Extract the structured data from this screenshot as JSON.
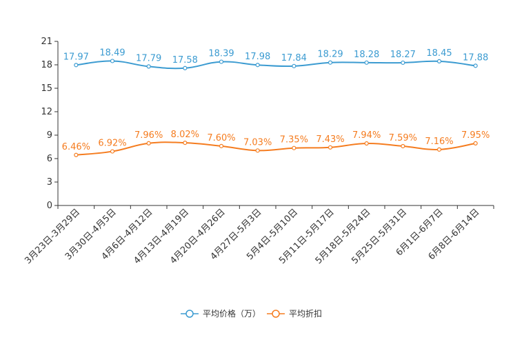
{
  "chart_data": {
    "type": "line",
    "title": "",
    "xlabel": "",
    "ylabel": "",
    "ylim": [
      0,
      21
    ],
    "yticks": [
      0,
      3,
      6,
      9,
      12,
      15,
      18,
      21
    ],
    "grid": false,
    "legend_position": "bottom-center",
    "categories": [
      "3月23日-3月29日",
      "3月30日-4月5日",
      "4月6日-4月12日",
      "4月13日-4月19日",
      "4月20日-4月26日",
      "4月27日-5月3日",
      "5月4日-5月10日",
      "5月11日-5月17日",
      "5月18日-5月24日",
      "5月25日-5月31日",
      "6月1日-6月7日",
      "6月8日-6月14日"
    ],
    "series": [
      {
        "name": "平均价格（万）",
        "color": "#3b9bd1",
        "values": [
          17.97,
          18.49,
          17.79,
          17.58,
          18.39,
          17.98,
          17.84,
          18.29,
          18.28,
          18.27,
          18.45,
          17.88
        ],
        "labels": [
          "17.97",
          "18.49",
          "17.79",
          "17.58",
          "18.39",
          "17.98",
          "17.84",
          "18.29",
          "18.28",
          "18.27",
          "18.45",
          "17.88"
        ]
      },
      {
        "name": "平均折扣",
        "color": "#f57c1f",
        "values": [
          6.46,
          6.92,
          7.96,
          8.02,
          7.6,
          7.03,
          7.35,
          7.43,
          7.94,
          7.59,
          7.16,
          7.95
        ],
        "labels": [
          "6.46%",
          "6.92%",
          "7.96%",
          "8.02%",
          "7.60%",
          "7.03%",
          "7.35%",
          "7.43%",
          "7.94%",
          "7.59%",
          "7.16%",
          "7.95%"
        ]
      }
    ]
  }
}
